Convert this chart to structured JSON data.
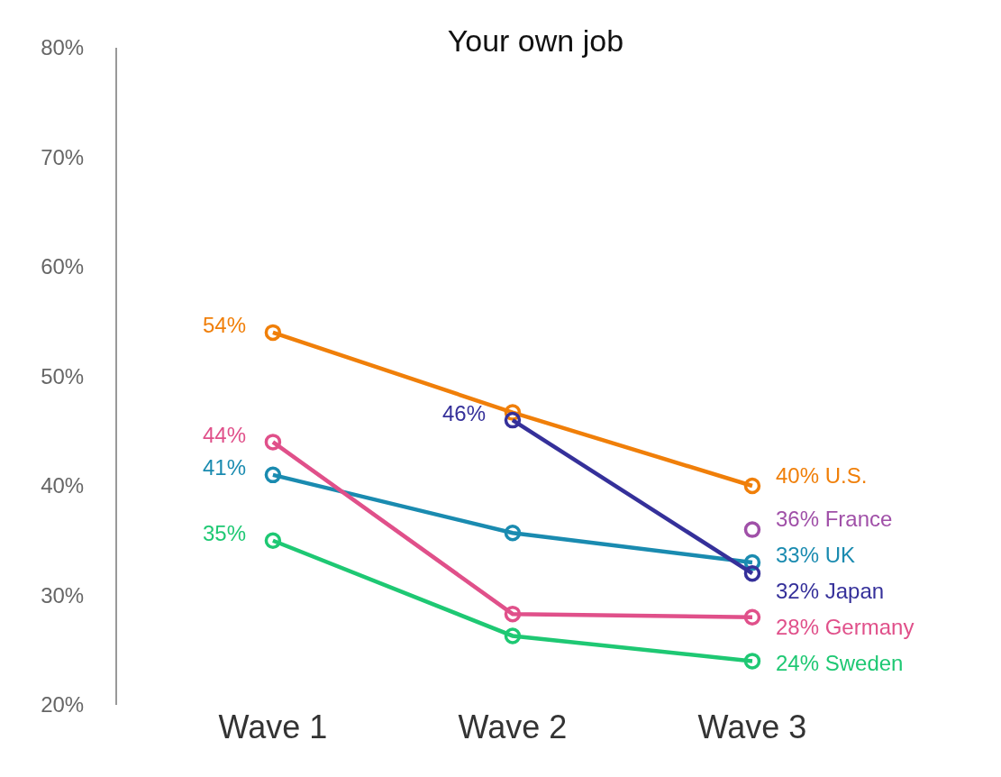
{
  "chart_data": {
    "type": "line",
    "title": "Your own job",
    "categories": [
      "Wave 1",
      "Wave 2",
      "Wave 3"
    ],
    "series": [
      {
        "name": "U.S.",
        "color": "#f07f09",
        "values": [
          54,
          46.7,
          40
        ],
        "value_labels": [
          "54%",
          null,
          "40%"
        ]
      },
      {
        "name": "France",
        "color": "#a050a8",
        "values": [
          null,
          null,
          36
        ],
        "value_labels": [
          null,
          null,
          "36%"
        ]
      },
      {
        "name": "UK",
        "color": "#1a8bb0",
        "values": [
          41,
          35.7,
          33
        ],
        "value_labels": [
          "41%",
          null,
          "33%"
        ]
      },
      {
        "name": "Japan",
        "color": "#35309a",
        "values": [
          null,
          46,
          32
        ],
        "value_labels": [
          null,
          "46%",
          "32%"
        ]
      },
      {
        "name": "Germany",
        "color": "#e0508a",
        "values": [
          44,
          28.3,
          28
        ],
        "value_labels": [
          "44%",
          null,
          "28%"
        ]
      },
      {
        "name": "Sweden",
        "color": "#1ec873",
        "values": [
          35,
          26.3,
          24
        ],
        "value_labels": [
          "35%",
          null,
          "24%"
        ]
      }
    ],
    "ylim": [
      20,
      80
    ],
    "yticks": [
      {
        "value": 20,
        "label": "20%"
      },
      {
        "value": 30,
        "label": "30%"
      },
      {
        "value": 40,
        "label": "40%"
      },
      {
        "value": 50,
        "label": "50%"
      },
      {
        "value": 60,
        "label": "60%"
      },
      {
        "value": 70,
        "label": "70%"
      },
      {
        "value": 80,
        "label": "80%"
      }
    ],
    "legend": false,
    "marker": "circle",
    "line_style": "solid"
  }
}
